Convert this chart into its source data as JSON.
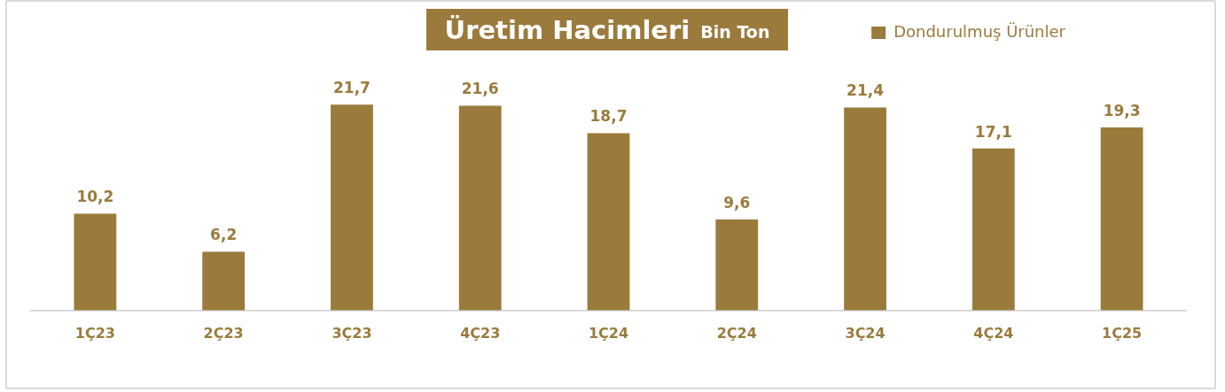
{
  "chart_data": {
    "type": "bar",
    "title": "Üretim Hacimleri",
    "subtitle": "Bin Ton",
    "categories": [
      "1Ç23",
      "2Ç23",
      "3Ç23",
      "4Ç23",
      "1Ç24",
      "2Ç24",
      "3Ç24",
      "4Ç24",
      "1Ç25"
    ],
    "series": [
      {
        "name": "Dondurulmuş Ürünler",
        "color": "#9a7b3c",
        "values": [
          10.2,
          6.2,
          21.7,
          21.6,
          18.7,
          9.6,
          21.4,
          17.1,
          19.3
        ],
        "value_labels": [
          "10,2",
          "6,2",
          "21,7",
          "21,6",
          "18,7",
          "9,6",
          "21,4",
          "17,1",
          "19,3"
        ]
      }
    ],
    "legend": "top right",
    "tick_labels": "x"
  }
}
